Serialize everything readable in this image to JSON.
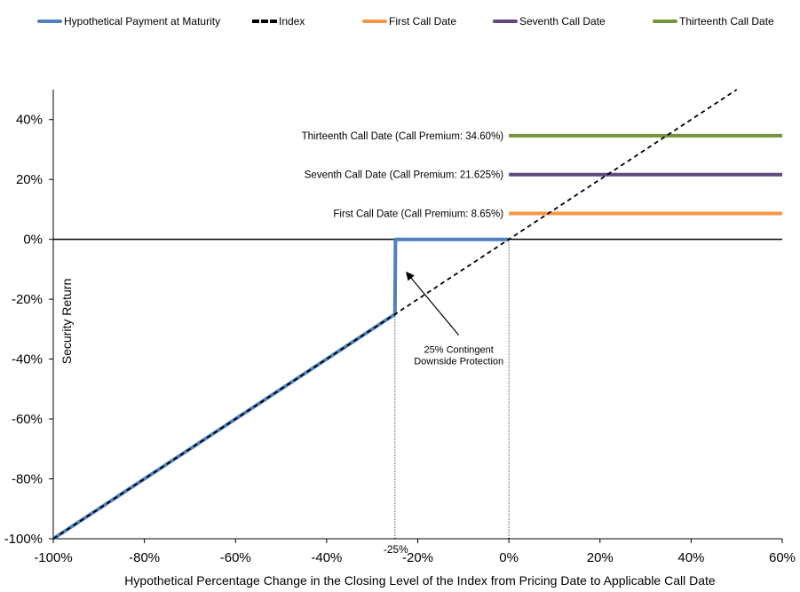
{
  "chart_data": {
    "type": "line",
    "xlabel": "Hypothetical Percentage Change in the Closing Level of the Index from Pricing Date to Applicable Call Date",
    "ylabel": "Security Return",
    "xlim": [
      -100,
      60
    ],
    "ylim": [
      -100,
      50
    ],
    "x_ticks": [
      "-100%",
      "-80%",
      "-60%",
      "-40%",
      "-20%",
      "0%",
      "20%",
      "40%",
      "60%"
    ],
    "y_ticks": [
      "-100%",
      "-80%",
      "-60%",
      "-40%",
      "-20%",
      "0%",
      "20%",
      "40%"
    ],
    "grid": false,
    "legend_position": "top",
    "series": [
      {
        "name": "Hypothetical Payment at Maturity",
        "color": "#4f81bd",
        "style": "solid",
        "x": [
          -100,
          -25,
          -24.9,
          0
        ],
        "y": [
          -100,
          -25,
          0,
          0
        ]
      },
      {
        "name": "Index",
        "color": "#000000",
        "style": "dashed",
        "x": [
          -100,
          50
        ],
        "y": [
          -100,
          50
        ]
      },
      {
        "name": "First Call Date",
        "color": "#f79646",
        "style": "solid",
        "x": [
          0,
          60
        ],
        "y": [
          8.65,
          8.65
        ]
      },
      {
        "name": "Seventh Call Date",
        "color": "#604a7b",
        "style": "solid",
        "x": [
          0,
          60
        ],
        "y": [
          21.625,
          21.625
        ]
      },
      {
        "name": "Thirteenth Call Date",
        "color": "#77933c",
        "style": "solid",
        "x": [
          0,
          60
        ],
        "y": [
          34.6,
          34.6
        ]
      }
    ],
    "annotations": [
      {
        "text": "Thirteenth  Call Date (Call Premium: 34.60%)",
        "x": 0,
        "y": 34.6
      },
      {
        "text": "Seventh  Call Date (Call Premium: 21.625%)",
        "x": 0,
        "y": 21.625
      },
      {
        "text": "First Call Date (Call Premium: 8.65%)",
        "x": 0,
        "y": 8.65
      }
    ],
    "arrow_note": {
      "lines": [
        "25% Contingent",
        "Downside Protection"
      ],
      "from": [
        -11,
        -32
      ],
      "to": [
        -22.5,
        -11
      ]
    },
    "marker_label": {
      "text": "-25%",
      "x": -25
    },
    "vertical_guides": [
      -25,
      0
    ]
  }
}
